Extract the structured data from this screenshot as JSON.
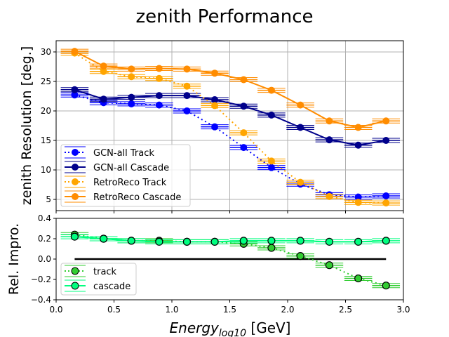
{
  "chart_data": [
    {
      "type": "line",
      "title": "zenith Performance",
      "ylabel": "zenith Resolution [deg.]",
      "xlim": [
        0,
        3.0
      ],
      "ylim": [
        3.1,
        31.9
      ],
      "yticks": [
        5,
        10,
        15,
        20,
        25,
        30
      ],
      "grid": true,
      "legend": "lower-left",
      "x": [
        0.16,
        0.41,
        0.65,
        0.89,
        1.13,
        1.37,
        1.62,
        1.86,
        2.11,
        2.36,
        2.61,
        2.85
      ],
      "xerr": 0.12,
      "series": [
        {
          "name": "GCN-all Track",
          "color": "#0000ff",
          "dash": "dotted",
          "values": [
            22.7,
            21.4,
            21.2,
            21.0,
            20.0,
            17.3,
            13.8,
            10.4,
            7.6,
            5.8,
            5.4,
            5.6
          ]
        },
        {
          "name": "GCN-all Cascade",
          "color": "#00008b",
          "dash": "solid",
          "values": [
            23.6,
            22.0,
            22.3,
            22.6,
            22.6,
            21.9,
            20.8,
            19.3,
            17.2,
            15.1,
            14.2,
            15.0
          ]
        },
        {
          "name": "RetroReco Track",
          "color": "#ffa500",
          "dash": "dotted",
          "values": [
            29.8,
            26.7,
            25.8,
            25.5,
            24.2,
            20.9,
            16.3,
            11.5,
            7.9,
            5.5,
            4.5,
            4.4
          ]
        },
        {
          "name": "RetroReco Cascade",
          "color": "#ff8c00",
          "dash": "solid",
          "values": [
            30.1,
            27.6,
            27.1,
            27.2,
            27.1,
            26.4,
            25.3,
            23.5,
            21.0,
            18.3,
            17.2,
            18.3
          ]
        }
      ]
    },
    {
      "type": "line",
      "xlabel": "Energy",
      "xlabel_sub": "log10",
      "xlabel_unit": " [GeV]",
      "ylabel": "Rel. Impro.",
      "xlim": [
        0,
        3.0
      ],
      "ylim": [
        -0.4,
        0.4
      ],
      "xticks": [
        "0.0",
        "0.5",
        "1.0",
        "1.5",
        "2.0",
        "2.5",
        "3.0"
      ],
      "yticks": [
        "0.4",
        "0.2",
        "0.0",
        "−0.2",
        "−0.4"
      ],
      "grid": false,
      "legend": "lower-left",
      "zero_line": [
        0.16,
        2.85
      ],
      "x": [
        0.16,
        0.41,
        0.65,
        0.89,
        1.13,
        1.37,
        1.62,
        1.86,
        2.11,
        2.36,
        2.61,
        2.85
      ],
      "xerr": 0.12,
      "series": [
        {
          "name": "track",
          "color": "#32cd32",
          "dash": "dotted",
          "values": [
            0.24,
            0.2,
            0.18,
            0.18,
            0.17,
            0.17,
            0.15,
            0.11,
            0.03,
            -0.06,
            -0.19,
            -0.26
          ]
        },
        {
          "name": "cascade",
          "color": "#00ff7f",
          "dash": "solid",
          "values": [
            0.22,
            0.2,
            0.18,
            0.17,
            0.17,
            0.17,
            0.18,
            0.18,
            0.18,
            0.17,
            0.17,
            0.18
          ]
        }
      ]
    }
  ]
}
